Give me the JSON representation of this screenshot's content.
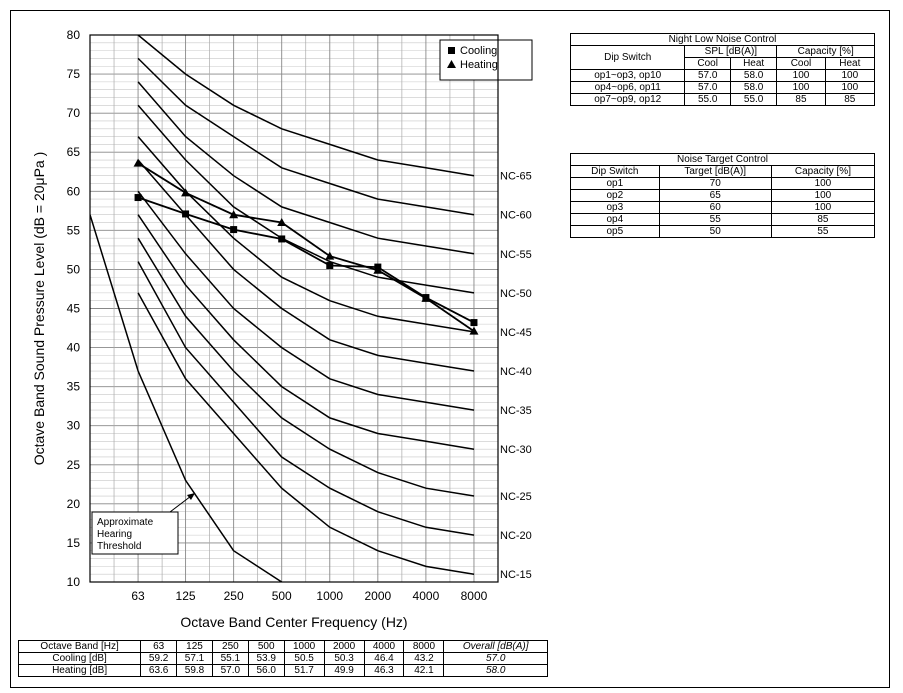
{
  "chart_data": {
    "type": "line",
    "title": "",
    "xlabel": "Octave Band Center Frequency (Hz)",
    "ylabel": "Octave Band Sound Pressure Level (dB = 20μPa )",
    "ylim": [
      10,
      80
    ],
    "y_ticks": [
      10,
      15,
      20,
      25,
      30,
      35,
      40,
      45,
      50,
      55,
      60,
      65,
      70,
      75,
      80
    ],
    "categories": [
      "63",
      "125",
      "250",
      "500",
      "1000",
      "2000",
      "4000",
      "8000"
    ],
    "grid": true,
    "legend_position": "top-right",
    "series": [
      {
        "name": "Cooling",
        "marker": "square",
        "values": [
          59.2,
          57.1,
          55.1,
          53.9,
          50.5,
          50.3,
          46.4,
          43.2
        ]
      },
      {
        "name": "Heating",
        "marker": "triangle",
        "values": [
          63.6,
          59.8,
          57.0,
          56.0,
          51.7,
          49.9,
          46.3,
          42.1
        ]
      }
    ],
    "nc_curves": [
      {
        "label": "NC-65",
        "values": [
          80,
          75,
          71,
          68,
          66,
          64,
          63,
          62
        ]
      },
      {
        "label": "NC-60",
        "values": [
          77,
          71,
          67,
          63,
          61,
          59,
          58,
          57
        ]
      },
      {
        "label": "NC-55",
        "values": [
          74,
          67,
          62,
          58,
          56,
          54,
          53,
          52
        ]
      },
      {
        "label": "NC-50",
        "values": [
          71,
          64,
          58,
          54,
          51,
          49,
          48,
          47
        ]
      },
      {
        "label": "NC-45",
        "values": [
          67,
          60,
          54,
          49,
          46,
          44,
          43,
          42
        ]
      },
      {
        "label": "NC-40",
        "values": [
          64,
          57,
          50,
          45,
          41,
          39,
          38,
          37
        ]
      },
      {
        "label": "NC-35",
        "values": [
          60,
          52,
          45,
          40,
          36,
          34,
          33,
          32
        ]
      },
      {
        "label": "NC-30",
        "values": [
          57,
          48,
          41,
          35,
          31,
          29,
          28,
          27
        ]
      },
      {
        "label": "NC-25",
        "values": [
          54,
          44,
          37,
          31,
          27,
          24,
          22,
          21
        ]
      },
      {
        "label": "NC-20",
        "values": [
          51,
          40,
          33,
          26,
          22,
          19,
          17,
          16
        ]
      },
      {
        "label": "NC-15",
        "values": [
          47,
          36,
          29,
          22,
          17,
          14,
          12,
          11
        ]
      }
    ],
    "threshold_curve": {
      "label": "Approximate Hearing Threshold",
      "x": [
        31.5,
        63,
        125,
        250,
        500
      ],
      "y": [
        57,
        37,
        23,
        14,
        10
      ]
    }
  },
  "night_table": {
    "title": "Night Low Noise Control",
    "col_dip": "Dip Switch",
    "col_spl": "SPL [dB(A)]",
    "col_cap": "Capacity [%]",
    "sub_cool": "Cool",
    "sub_heat": "Heat",
    "rows": [
      {
        "dip": "op1~op3, op10",
        "spl_cool": "57.0",
        "spl_heat": "58.0",
        "cap_cool": "100",
        "cap_heat": "100"
      },
      {
        "dip": "op4~op6, op11",
        "spl_cool": "57.0",
        "spl_heat": "58.0",
        "cap_cool": "100",
        "cap_heat": "100"
      },
      {
        "dip": "op7~op9, op12",
        "spl_cool": "55.0",
        "spl_heat": "55.0",
        "cap_cool": "85",
        "cap_heat": "85"
      }
    ]
  },
  "target_table": {
    "title": "Noise Target Control",
    "col_dip": "Dip Switch",
    "col_target": "Target [dB(A)]",
    "col_cap": "Capacity [%]",
    "rows": [
      {
        "dip": "op1",
        "target": "70",
        "cap": "100"
      },
      {
        "dip": "op2",
        "target": "65",
        "cap": "100"
      },
      {
        "dip": "op3",
        "target": "60",
        "cap": "100"
      },
      {
        "dip": "op4",
        "target": "55",
        "cap": "85"
      },
      {
        "dip": "op5",
        "target": "50",
        "cap": "55"
      }
    ]
  },
  "spectrum_table": {
    "header_label": "Octave Band [Hz]",
    "bands": [
      "63",
      "125",
      "250",
      "500",
      "1000",
      "2000",
      "4000",
      "8000"
    ],
    "overall_label": "Overall [dB(A)]",
    "rows": [
      {
        "label": "Cooling [dB]",
        "values": [
          "59.2",
          "57.1",
          "55.1",
          "53.9",
          "50.5",
          "50.3",
          "46.4",
          "43.2"
        ],
        "overall": "57.0"
      },
      {
        "label": "Heating [dB]",
        "values": [
          "63.6",
          "59.8",
          "57.0",
          "56.0",
          "51.7",
          "49.9",
          "46.3",
          "42.1"
        ],
        "overall": "58.0"
      }
    ]
  }
}
